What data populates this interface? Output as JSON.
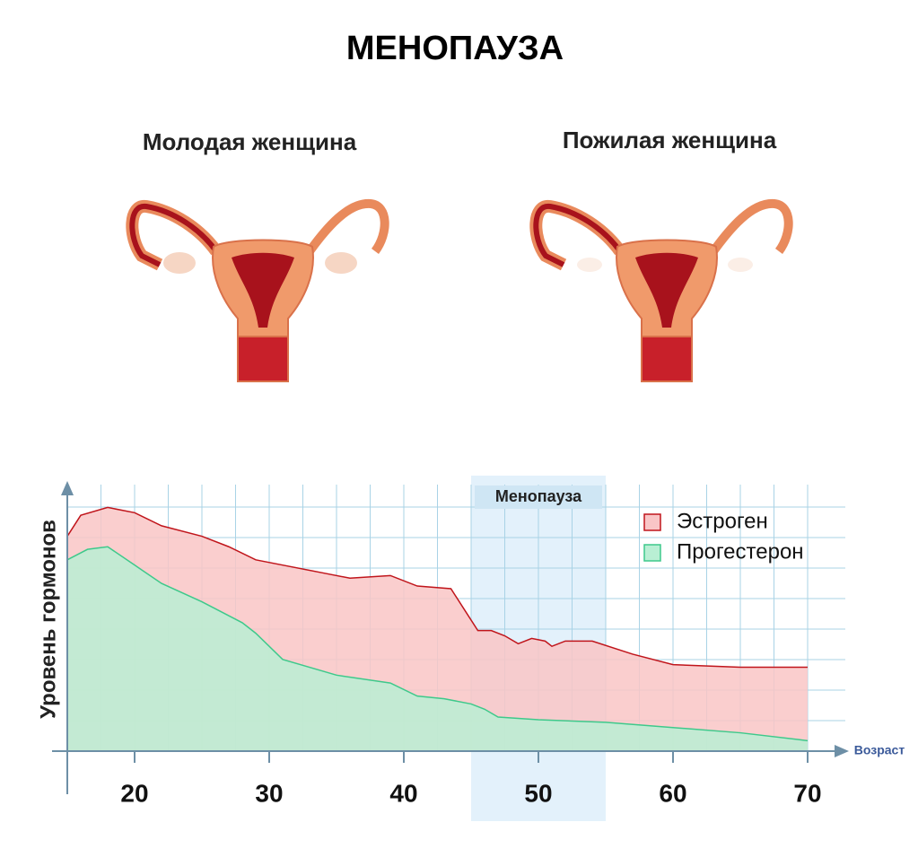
{
  "title": "МЕНОПАУЗА",
  "panels": [
    {
      "label": "Молодая женщина"
    },
    {
      "label": "Пожилая женщина"
    }
  ],
  "chart_data": {
    "type": "area",
    "y_label": "Уровень гормонов",
    "x_label": "Возраст",
    "xlim": [
      15,
      74
    ],
    "xticks": [
      20,
      30,
      40,
      50,
      60,
      70
    ],
    "ylim": [
      0,
      100
    ],
    "grid": true,
    "legend": "upper right",
    "band": {
      "label": "Менопауза",
      "range": [
        45,
        55
      ],
      "color": "#e3f1fb"
    },
    "series": [
      {
        "name": "Эстроген",
        "color": "#c0151b",
        "fill": "#f9c5c6",
        "x": [
          15,
          16,
          18,
          20,
          22,
          25,
          27,
          29,
          31,
          34,
          36,
          39,
          41,
          43.5,
          44.5,
          45.5,
          46.5,
          47.5,
          48.5,
          49.5,
          50.5,
          51,
          52,
          54,
          57,
          60,
          65,
          70
        ],
        "values": [
          82,
          90,
          93,
          91,
          86,
          82,
          78,
          73,
          71,
          68,
          66,
          67,
          63,
          62,
          54,
          46,
          46,
          44,
          41,
          43,
          42,
          40,
          42,
          42,
          37,
          33,
          32,
          32
        ]
      },
      {
        "name": "Прогестерон",
        "color": "#3ec98b",
        "fill": "#b9efd4",
        "x": [
          15,
          16.5,
          18,
          20,
          22,
          25,
          28,
          29,
          31,
          35,
          39,
          41,
          43,
          45,
          46,
          47,
          50,
          55,
          60,
          65,
          70
        ],
        "values": [
          73,
          77,
          78,
          71,
          64,
          57,
          49,
          45,
          35,
          29,
          26,
          21,
          20,
          18,
          16,
          13,
          12,
          11,
          9,
          7,
          4
        ]
      }
    ]
  }
}
